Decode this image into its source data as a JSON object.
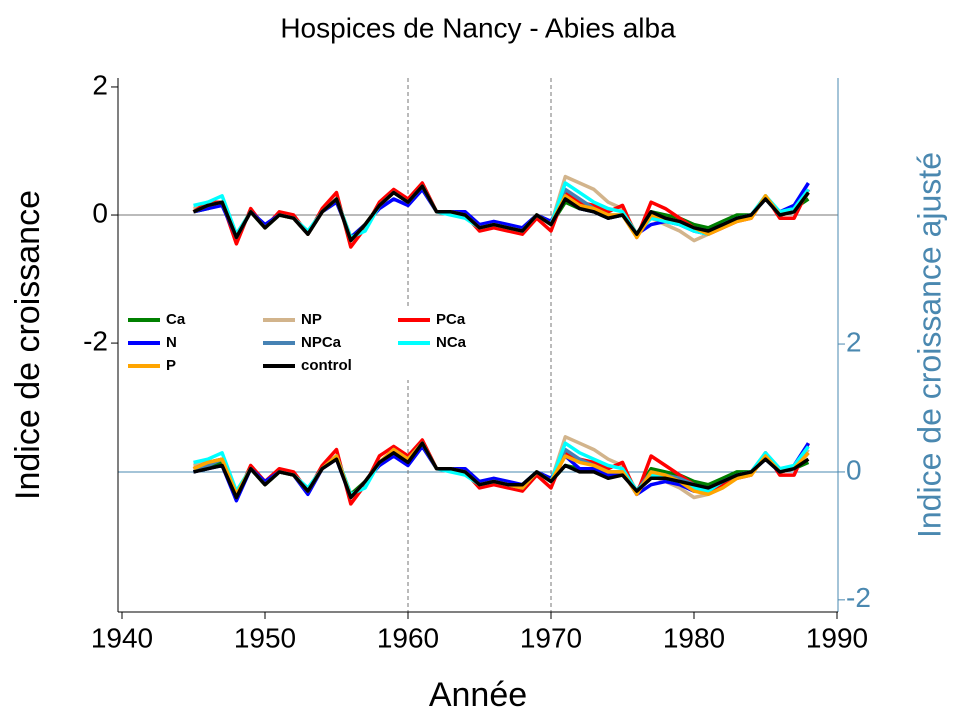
{
  "chart_data": {
    "type": "line",
    "title": "Hospices de Nancy - Abies alba",
    "xlabel": "Année",
    "ylabel": "Indice de croissance",
    "y2label": "Indice de croissance ajusté",
    "x": [
      1945,
      1946,
      1947,
      1948,
      1949,
      1950,
      1951,
      1952,
      1953,
      1954,
      1955,
      1956,
      1957,
      1958,
      1959,
      1960,
      1961,
      1962,
      1963,
      1964,
      1965,
      1966,
      1967,
      1968,
      1969,
      1970,
      1971,
      1972,
      1973,
      1974,
      1975,
      1976,
      1977,
      1978,
      1979,
      1980,
      1981,
      1982,
      1983,
      1984,
      1985,
      1986,
      1987,
      1988
    ],
    "xlim": [
      1939.72,
      1990.07
    ],
    "xticks": [
      1940,
      1950,
      1960,
      1970,
      1980,
      1990
    ],
    "ylim": [
      -6.2,
      2.14
    ],
    "yticks": [
      -2,
      0,
      2
    ],
    "y2lim": [
      -2.19,
      6.16
    ],
    "y2ticks": [
      -2,
      0,
      2
    ],
    "y2color": "#4a88b0",
    "vlines": [
      1960,
      1970
    ],
    "series": [
      {
        "name": "Ca",
        "color": "#008000",
        "values": [
          0.05,
          0.1,
          0.2,
          -0.35,
          0.05,
          -0.2,
          0,
          -0.05,
          -0.3,
          0.05,
          0.25,
          -0.35,
          -0.15,
          0.15,
          0.35,
          0.2,
          0.45,
          0.05,
          0.05,
          0,
          -0.2,
          -0.15,
          -0.2,
          -0.25,
          0,
          -0.15,
          0.2,
          0.1,
          0.05,
          -0.05,
          0,
          -0.3,
          0.05,
          0,
          -0.05,
          -0.15,
          -0.2,
          -0.1,
          0,
          0,
          0.25,
          0.05,
          0.1,
          0.25
        ],
        "values_y2": [
          0,
          0.05,
          0.15,
          -0.4,
          0.05,
          -0.2,
          0,
          -0.05,
          -0.3,
          0.05,
          0.25,
          -0.35,
          -0.15,
          0.15,
          0.3,
          0.15,
          0.45,
          0.05,
          0.05,
          0,
          -0.2,
          -0.15,
          -0.2,
          -0.2,
          0,
          -0.15,
          0.1,
          0.05,
          0.05,
          -0.05,
          0,
          -0.3,
          0.05,
          0,
          -0.05,
          -0.15,
          -0.2,
          -0.1,
          0,
          0,
          0.2,
          0,
          0.05,
          0.15
        ]
      },
      {
        "name": "NP",
        "color": "#d2b48c",
        "values": [
          0.1,
          0.15,
          0.2,
          -0.3,
          0.05,
          -0.15,
          0,
          -0.05,
          -0.3,
          0.05,
          0.25,
          -0.35,
          -0.2,
          0.15,
          0.35,
          0.2,
          0.45,
          0.05,
          0.05,
          0,
          -0.2,
          -0.15,
          -0.2,
          -0.25,
          0,
          -0.15,
          0.6,
          0.5,
          0.4,
          0.2,
          0.1,
          -0.3,
          -0.05,
          -0.15,
          -0.25,
          -0.4,
          -0.3,
          -0.2,
          -0.1,
          0,
          0.3,
          0,
          0.05,
          0.35
        ],
        "values_y2": [
          0.1,
          0.15,
          0.2,
          -0.35,
          0.05,
          -0.15,
          0,
          -0.05,
          -0.3,
          0.05,
          0.25,
          -0.4,
          -0.2,
          0.15,
          0.3,
          0.2,
          0.45,
          0.05,
          0.05,
          0,
          -0.2,
          -0.15,
          -0.2,
          -0.25,
          0,
          -0.15,
          0.55,
          0.45,
          0.35,
          0.2,
          0.1,
          -0.3,
          -0.05,
          -0.15,
          -0.25,
          -0.4,
          -0.35,
          -0.25,
          -0.1,
          0,
          0.3,
          0,
          0.05,
          0.35
        ]
      },
      {
        "name": "PCa",
        "color": "#ff0000",
        "values": [
          0.05,
          0.2,
          0.2,
          -0.45,
          0.1,
          -0.2,
          0.05,
          0,
          -0.3,
          0.1,
          0.35,
          -0.5,
          -0.2,
          0.2,
          0.4,
          0.25,
          0.5,
          0.05,
          0.05,
          0,
          -0.25,
          -0.2,
          -0.25,
          -0.3,
          -0.05,
          -0.25,
          0.35,
          0.2,
          0.15,
          0.05,
          0.15,
          -0.35,
          0.2,
          0.1,
          -0.05,
          -0.2,
          -0.3,
          -0.2,
          -0.1,
          -0.05,
          0.3,
          -0.05,
          -0.05,
          0.4
        ],
        "values_y2": [
          0.05,
          0.15,
          0.2,
          -0.4,
          0.1,
          -0.15,
          0.05,
          0,
          -0.3,
          0.1,
          0.35,
          -0.5,
          -0.2,
          0.25,
          0.4,
          0.25,
          0.5,
          0.05,
          0.05,
          0,
          -0.25,
          -0.2,
          -0.25,
          -0.3,
          -0.05,
          -0.25,
          0.3,
          0.2,
          0.15,
          0.05,
          0.15,
          -0.35,
          0.25,
          0.1,
          -0.05,
          -0.2,
          -0.3,
          -0.2,
          -0.1,
          -0.05,
          0.3,
          -0.05,
          -0.05,
          0.45
        ]
      },
      {
        "name": "N",
        "color": "#0000ff",
        "values": [
          0.05,
          0.1,
          0.15,
          -0.35,
          0.05,
          -0.15,
          0,
          -0.05,
          -0.3,
          0.05,
          0.2,
          -0.35,
          -0.15,
          0.1,
          0.25,
          0.15,
          0.4,
          0.05,
          0.05,
          0.05,
          -0.15,
          -0.1,
          -0.15,
          -0.2,
          0,
          -0.1,
          0.3,
          0.1,
          0.05,
          -0.05,
          0,
          -0.3,
          -0.15,
          -0.1,
          -0.15,
          -0.25,
          -0.3,
          -0.15,
          -0.05,
          0,
          0.25,
          0.05,
          0.15,
          0.5
        ],
        "values_y2": [
          0,
          0.05,
          0.1,
          -0.45,
          0.05,
          -0.15,
          0,
          -0.05,
          -0.35,
          0.05,
          0.2,
          -0.4,
          -0.15,
          0.1,
          0.25,
          0.1,
          0.4,
          0.05,
          0.05,
          0.05,
          -0.15,
          -0.1,
          -0.15,
          -0.2,
          0,
          -0.1,
          0.25,
          0.05,
          0.05,
          -0.05,
          0,
          -0.35,
          -0.2,
          -0.15,
          -0.2,
          -0.3,
          -0.3,
          -0.15,
          -0.05,
          0,
          0.2,
          0,
          0.1,
          0.45
        ]
      },
      {
        "name": "NPCa",
        "color": "#4682b4",
        "values": [
          0.05,
          0.15,
          0.2,
          -0.35,
          0.05,
          -0.2,
          0,
          -0.05,
          -0.3,
          0.05,
          0.25,
          -0.4,
          -0.15,
          0.15,
          0.35,
          0.2,
          0.45,
          0.05,
          0.05,
          0,
          -0.2,
          -0.15,
          -0.2,
          -0.25,
          0,
          -0.15,
          0.4,
          0.25,
          0.1,
          0,
          0,
          -0.3,
          0,
          -0.05,
          -0.1,
          -0.2,
          -0.25,
          -0.15,
          -0.05,
          0,
          0.25,
          0,
          0.05,
          0.35
        ],
        "values_y2": [
          0.05,
          0.1,
          0.2,
          -0.35,
          0.05,
          -0.2,
          0,
          -0.05,
          -0.3,
          0.05,
          0.25,
          -0.4,
          -0.15,
          0.15,
          0.3,
          0.2,
          0.45,
          0.05,
          0.05,
          0,
          -0.2,
          -0.15,
          -0.2,
          -0.25,
          0,
          -0.15,
          0.35,
          0.2,
          0.1,
          0,
          0,
          -0.3,
          0,
          -0.05,
          -0.1,
          -0.2,
          -0.25,
          -0.15,
          -0.05,
          0,
          0.25,
          0,
          0.05,
          0.3
        ]
      },
      {
        "name": "NCa",
        "color": "#00ffff",
        "values": [
          0.15,
          0.2,
          0.3,
          -0.3,
          0.05,
          -0.2,
          0,
          -0.05,
          -0.25,
          0.05,
          0.25,
          -0.35,
          -0.25,
          0.15,
          0.35,
          0.2,
          0.45,
          0.05,
          0,
          -0.05,
          -0.2,
          -0.15,
          -0.2,
          -0.25,
          0,
          -0.15,
          0.5,
          0.35,
          0.2,
          0.1,
          0.05,
          -0.3,
          -0.05,
          -0.1,
          -0.15,
          -0.25,
          -0.3,
          -0.15,
          -0.05,
          0,
          0.3,
          0.05,
          0.1,
          0.4
        ],
        "values_y2": [
          0.15,
          0.2,
          0.3,
          -0.3,
          0.05,
          -0.2,
          0,
          -0.05,
          -0.25,
          0.05,
          0.25,
          -0.35,
          -0.25,
          0.15,
          0.35,
          0.2,
          0.45,
          0.05,
          0,
          -0.05,
          -0.2,
          -0.15,
          -0.2,
          -0.25,
          0,
          -0.15,
          0.45,
          0.3,
          0.2,
          0.1,
          0.05,
          -0.3,
          -0.05,
          -0.1,
          -0.15,
          -0.25,
          -0.3,
          -0.15,
          -0.05,
          0,
          0.3,
          0.05,
          0.1,
          0.4
        ]
      },
      {
        "name": "P",
        "color": "#ffa500",
        "values": [
          0.05,
          0.15,
          0.2,
          -0.35,
          0.05,
          -0.2,
          0,
          -0.05,
          -0.3,
          0.05,
          0.25,
          -0.4,
          -0.15,
          0.15,
          0.35,
          0.2,
          0.45,
          0.05,
          0.05,
          0,
          -0.2,
          -0.15,
          -0.2,
          -0.25,
          0,
          -0.15,
          0.3,
          0.15,
          0.1,
          0,
          0,
          -0.35,
          0,
          -0.05,
          -0.1,
          -0.2,
          -0.3,
          -0.2,
          -0.1,
          -0.05,
          0.3,
          0,
          0.05,
          0.35
        ],
        "values_y2": [
          0.05,
          0.15,
          0.2,
          -0.35,
          0.05,
          -0.2,
          0,
          -0.05,
          -0.3,
          0.05,
          0.25,
          -0.4,
          -0.15,
          0.15,
          0.35,
          0.2,
          0.45,
          0.05,
          0.05,
          0,
          -0.2,
          -0.15,
          -0.2,
          -0.25,
          0,
          -0.15,
          0.25,
          0.15,
          0.1,
          0,
          0,
          -0.35,
          0,
          -0.05,
          -0.15,
          -0.3,
          -0.35,
          -0.25,
          -0.1,
          -0.05,
          0.25,
          0,
          0.05,
          0.3
        ]
      },
      {
        "name": "control",
        "color": "#000000",
        "values": [
          0.05,
          0.15,
          0.2,
          -0.35,
          0.05,
          -0.2,
          0,
          -0.05,
          -0.3,
          0.05,
          0.25,
          -0.4,
          -0.15,
          0.15,
          0.35,
          0.2,
          0.45,
          0.05,
          0.05,
          0,
          -0.2,
          -0.15,
          -0.2,
          -0.25,
          0,
          -0.15,
          0.25,
          0.1,
          0.05,
          -0.05,
          0,
          -0.3,
          0.05,
          -0.05,
          -0.1,
          -0.2,
          -0.25,
          -0.15,
          -0.05,
          0,
          0.25,
          0,
          0.05,
          0.35
        ],
        "values_y2": [
          0,
          0.05,
          0.1,
          -0.4,
          0.05,
          -0.2,
          0,
          -0.05,
          -0.3,
          0.05,
          0.2,
          -0.4,
          -0.15,
          0.15,
          0.3,
          0.15,
          0.45,
          0.05,
          0.05,
          0,
          -0.2,
          -0.15,
          -0.2,
          -0.2,
          0,
          -0.15,
          0.1,
          0,
          0,
          -0.1,
          -0.05,
          -0.3,
          -0.1,
          -0.1,
          -0.15,
          -0.2,
          -0.25,
          -0.15,
          -0.05,
          0,
          0.2,
          0,
          0.05,
          0.2
        ]
      }
    ]
  }
}
